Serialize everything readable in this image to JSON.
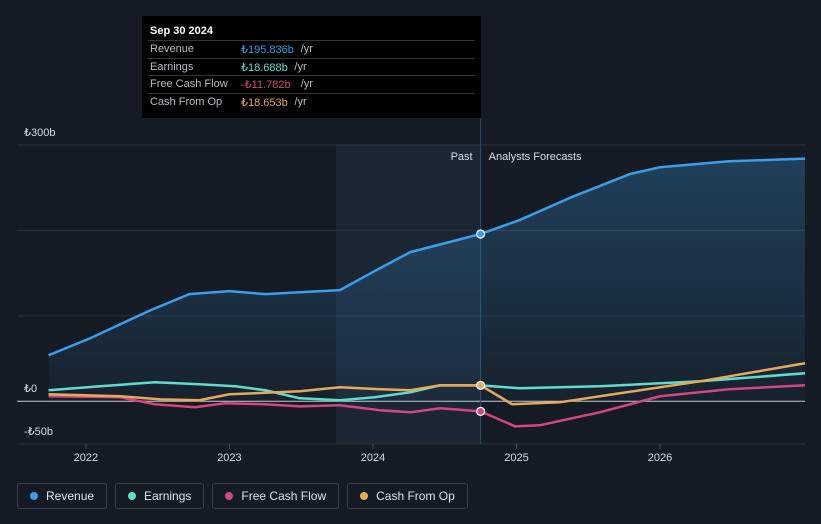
{
  "chart_data": {
    "type": "line",
    "ylim": [
      -50,
      300
    ],
    "yticks": [
      {
        "value": -50,
        "label": "-₺50b"
      },
      {
        "value": 0,
        "label": "₺0"
      },
      {
        "value": 100,
        "label": null
      },
      {
        "value": 200,
        "label": null
      },
      {
        "value": 300,
        "label": "₺300b"
      }
    ],
    "xlim": [
      2021.52,
      2027.01
    ],
    "xticks": [
      2022,
      2023,
      2024,
      2025,
      2026
    ],
    "divider": 2024.75,
    "past_label": "Past",
    "forecast_label": "Analysts Forecasts",
    "series": [
      {
        "name": "Revenue",
        "color": "#3a9ee8",
        "x": [
          2021.74,
          2022.03,
          2022.45,
          2022.72,
          2023.0,
          2023.25,
          2023.49,
          2023.77,
          2024.01,
          2024.26,
          2024.75,
          2025.02,
          2025.37,
          2025.79,
          2026.0,
          2026.48,
          2027.01
        ],
        "values": [
          53.9,
          73.8,
          106.6,
          125.4,
          128.9,
          125.4,
          127.7,
          130.1,
          152.3,
          174.6,
          195.836,
          212,
          238,
          266,
          274,
          281,
          284
        ]
      },
      {
        "name": "Earnings",
        "color": "#5fdccd",
        "x": [
          2021.74,
          2022.1,
          2022.48,
          2022.79,
          2023.04,
          2023.25,
          2023.49,
          2023.77,
          2024.01,
          2024.26,
          2024.47,
          2024.75,
          2025.02,
          2025.58,
          2026.28,
          2027.01
        ],
        "values": [
          12.9,
          17.6,
          22.3,
          19.9,
          17.6,
          12.9,
          3.5,
          1.2,
          4.7,
          10.5,
          18.8,
          18.688,
          15.2,
          17.6,
          23.4,
          32.8
        ]
      },
      {
        "name": "Free Cash Flow",
        "color": "#d3477f",
        "x": [
          2021.74,
          2022.24,
          2022.48,
          2022.76,
          2022.97,
          2023.25,
          2023.49,
          2023.77,
          2024.05,
          2024.26,
          2024.47,
          2024.75,
          2024.99,
          2025.16,
          2025.58,
          2026.0,
          2026.48,
          2027.01
        ],
        "values": [
          5.9,
          4.7,
          -3.5,
          -7,
          -2.3,
          -3.5,
          -5.9,
          -4.7,
          -10.5,
          -12.9,
          -8.2,
          -11.782,
          -29.3,
          -28.1,
          -12.9,
          5.9,
          14.1,
          18.8
        ]
      },
      {
        "name": "Cash From Op",
        "color": "#e6a95c",
        "x": [
          2021.74,
          2022.24,
          2022.52,
          2022.79,
          2023.0,
          2023.49,
          2023.77,
          2024.05,
          2024.26,
          2024.47,
          2024.75,
          2024.97,
          2025.3,
          2025.72,
          2026.28,
          2027.01
        ],
        "values": [
          8.2,
          5.9,
          2.3,
          1.2,
          8.2,
          11.7,
          16.4,
          14.1,
          12.9,
          18.8,
          18.653,
          -3.5,
          -1.2,
          9.4,
          23.4,
          44.5
        ]
      }
    ],
    "tooltip": {
      "date": "Sep 30 2024",
      "rows": [
        {
          "name": "Revenue",
          "value_label": "₺195.836b",
          "unit": "/yr"
        },
        {
          "name": "Earnings",
          "value_label": "₺18.688b",
          "unit": "/yr"
        },
        {
          "name": "Free Cash Flow",
          "value_label": "-₺11.782b",
          "unit": "/yr"
        },
        {
          "name": "Cash From Op",
          "value_label": "₺18.653b",
          "unit": "/yr"
        }
      ]
    }
  }
}
